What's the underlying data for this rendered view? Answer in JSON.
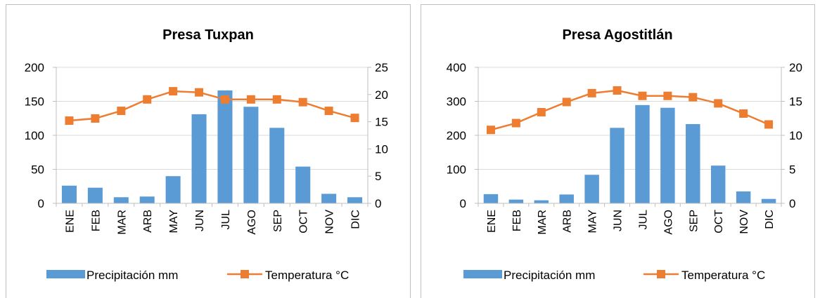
{
  "colors": {
    "precip": "#5b9bd5",
    "temp": "#ed7d31",
    "grid": "#d9d9d9",
    "axis": "#bfbfbf",
    "text": "#000000",
    "border": "#bfbfbf"
  },
  "chart_data": [
    {
      "type": "bar",
      "title": "Presa Tuxpan",
      "categories": [
        "ENE",
        "FEB",
        "MAR",
        "ARB",
        "MAY",
        "JUN",
        "JUL",
        "AGO",
        "SEP",
        "OCT",
        "NOV",
        "DIC"
      ],
      "ylim": [
        0,
        200
      ],
      "yticks": [
        "0",
        "50",
        "100",
        "150",
        "200"
      ],
      "y2lim": [
        0,
        25
      ],
      "y2ticks": [
        "0",
        "5",
        "10",
        "15",
        "20",
        "25"
      ],
      "grid": true,
      "legend_position": "bottom",
      "series": [
        {
          "name": "Precipitación mm",
          "type": "bar",
          "axis": "left",
          "values": [
            26,
            23,
            9,
            10,
            40,
            131,
            166,
            142,
            111,
            54,
            14,
            9
          ]
        },
        {
          "name": "Temperatura °C",
          "type": "line",
          "axis": "right",
          "values": [
            15.2,
            15.6,
            17.0,
            19.1,
            20.6,
            20.4,
            19.1,
            19.1,
            19.1,
            18.6,
            17.0,
            15.7
          ]
        }
      ]
    },
    {
      "type": "bar",
      "title": "Presa Agostitlán",
      "categories": [
        "ENE",
        "FEB",
        "MAR",
        "ARB",
        "MAY",
        "JUN",
        "JUL",
        "AGO",
        "SEP",
        "OCT",
        "NOV",
        "DIC"
      ],
      "ylim": [
        0,
        400
      ],
      "yticks": [
        "0",
        "100",
        "200",
        "300",
        "400"
      ],
      "y2lim": [
        0,
        20
      ],
      "y2ticks": [
        "0",
        "5",
        "10",
        "15",
        "20"
      ],
      "grid": true,
      "legend_position": "bottom",
      "series": [
        {
          "name": "Precipitación mm",
          "type": "bar",
          "axis": "left",
          "values": [
            27,
            11,
            9,
            26,
            84,
            222,
            289,
            281,
            233,
            111,
            35,
            13
          ]
        },
        {
          "name": "Temperatura °C",
          "type": "line",
          "axis": "right",
          "values": [
            10.8,
            11.8,
            13.4,
            14.9,
            16.2,
            16.6,
            15.8,
            15.8,
            15.6,
            14.7,
            13.2,
            11.6
          ]
        }
      ]
    }
  ]
}
